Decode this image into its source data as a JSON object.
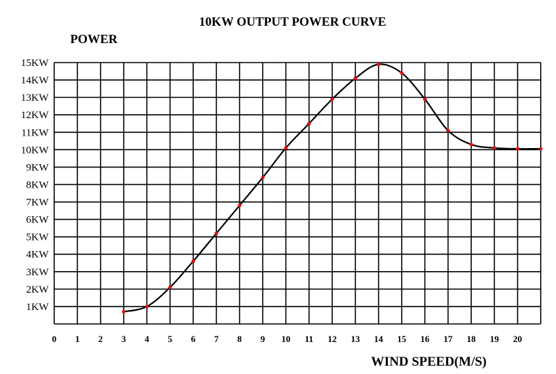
{
  "chart_data": {
    "type": "line",
    "title": "10KW OUTPUT  POWER CURVE",
    "ylabel": "POWER",
    "xlabel": "WIND SPEED(M/S)",
    "x_ticks": [
      "0",
      "1",
      "2",
      "3",
      "4",
      "5",
      "6",
      "7",
      "8",
      "9",
      "10",
      "11",
      "12",
      "13",
      "14",
      "15",
      "16",
      "17",
      "18",
      "19",
      "20"
    ],
    "y_ticks": [
      "1KW",
      "2KW",
      "3KW",
      "4KW",
      "5KW",
      "6KW",
      "7KW",
      "8KW",
      "9KW",
      "10KW",
      "11KW",
      "12KW",
      "13KW",
      "14KW",
      "15KW"
    ],
    "xlim": [
      0,
      21
    ],
    "ylim": [
      0,
      15
    ],
    "grid": true,
    "marker_color": "#e01010",
    "line_color": "#000000",
    "x": [
      3,
      4,
      5,
      6,
      7,
      8,
      9,
      10,
      11,
      12,
      13,
      14,
      15,
      16,
      17,
      18,
      19,
      20,
      21
    ],
    "y": [
      0.7,
      1.0,
      2.1,
      3.6,
      5.2,
      6.8,
      8.4,
      10.1,
      11.5,
      12.9,
      14.1,
      14.9,
      14.4,
      12.9,
      11.1,
      10.3,
      10.1,
      10.05,
      10.05
    ]
  }
}
